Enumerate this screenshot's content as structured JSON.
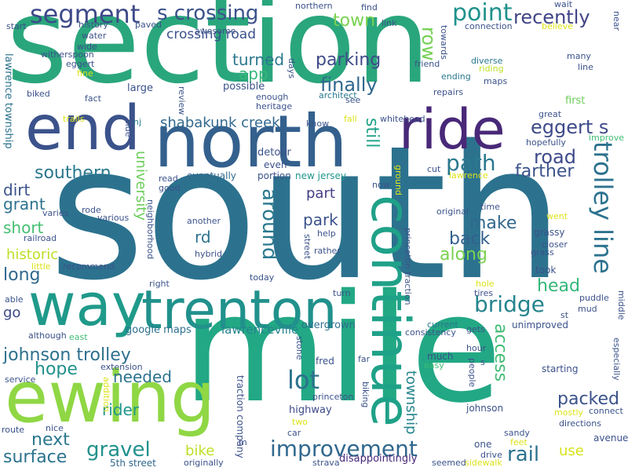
{
  "words": [
    {
      "id": "section",
      "text": "section",
      "color": "#2aa67c"
    },
    {
      "id": "south",
      "text": "south",
      "color": "#2c728e"
    },
    {
      "id": "mile",
      "text": "mile",
      "color": "#22a884"
    },
    {
      "id": "north",
      "text": "north",
      "color": "#34608d"
    },
    {
      "id": "end",
      "text": "end",
      "color": "#3b528b"
    },
    {
      "id": "ride",
      "text": "ride",
      "color": "#482878"
    },
    {
      "id": "way",
      "text": "way",
      "color": "#1f9a8a"
    },
    {
      "id": "trenton",
      "text": "trenton",
      "color": "#21918c"
    },
    {
      "id": "ewing",
      "text": "ewing",
      "color": "#8fd744"
    },
    {
      "id": "continue",
      "text": "continue",
      "color": "#1fa188"
    },
    {
      "id": "segment",
      "text": "segment",
      "color": "#3e4a89"
    },
    {
      "id": "s-crossing",
      "text": "s crossing",
      "color": "#3b528b"
    },
    {
      "id": "point",
      "text": "point",
      "color": "#21918c"
    },
    {
      "id": "recently",
      "text": "recently",
      "color": "#414487"
    },
    {
      "id": "town",
      "text": "town",
      "color": "#7ad151"
    },
    {
      "id": "crossing-road",
      "text": "crossing road",
      "color": "#3b528b"
    },
    {
      "id": "turned",
      "text": "turned",
      "color": "#2a788e"
    },
    {
      "id": "parking",
      "text": "parking",
      "color": "#3e4a89"
    },
    {
      "id": "app",
      "text": "app",
      "color": "#35b779"
    },
    {
      "id": "finally",
      "text": "finally",
      "color": "#31688e"
    },
    {
      "id": "row",
      "text": "row",
      "color": "#75d054"
    },
    {
      "id": "shabakunk-creek",
      "text": "shabakunk creek",
      "color": "#31688e"
    },
    {
      "id": "eggert-s",
      "text": "eggert s",
      "color": "#3e4a89"
    },
    {
      "id": "path",
      "text": "path",
      "color": "#2a788e"
    },
    {
      "id": "road",
      "text": "road",
      "color": "#3e4a89"
    },
    {
      "id": "trolley-line",
      "text": "trolley line",
      "color": "#2c728e"
    },
    {
      "id": "southern",
      "text": "southern",
      "color": "#2a788e"
    },
    {
      "id": "dirt",
      "text": "dirt",
      "color": "#3b528b"
    },
    {
      "id": "grant",
      "text": "grant",
      "color": "#2c728e"
    },
    {
      "id": "short",
      "text": "short",
      "color": "#44bf70"
    },
    {
      "id": "university",
      "text": "university",
      "color": "#6ccd5a"
    },
    {
      "id": "around",
      "text": "around",
      "color": "#2a788e"
    },
    {
      "id": "part",
      "text": "part",
      "color": "#433e85"
    },
    {
      "id": "farther",
      "text": "farther",
      "color": "#3b528b"
    },
    {
      "id": "make",
      "text": "make",
      "color": "#31688e"
    },
    {
      "id": "rd",
      "text": "rd",
      "color": "#2d708e"
    },
    {
      "id": "park",
      "text": "park",
      "color": "#3b528b"
    },
    {
      "id": "back",
      "text": "back",
      "color": "#34608d"
    },
    {
      "id": "historic",
      "text": "historic",
      "color": "#bddf26"
    },
    {
      "id": "long",
      "text": "long",
      "color": "#31688e"
    },
    {
      "id": "along",
      "text": "along",
      "color": "#7ad151"
    },
    {
      "id": "bridge",
      "text": "bridge",
      "color": "#25858e"
    },
    {
      "id": "head",
      "text": "head",
      "color": "#35b779"
    },
    {
      "id": "access",
      "text": "access",
      "color": "#3fbc73"
    },
    {
      "id": "johnson-trolley",
      "text": "johnson trolley",
      "color": "#2d708e"
    },
    {
      "id": "lot",
      "text": "lot",
      "color": "#2c728e"
    },
    {
      "id": "township",
      "text": "township",
      "color": "#25858e"
    },
    {
      "id": "hope",
      "text": "hope",
      "color": "#21918c"
    },
    {
      "id": "needed",
      "text": "needed",
      "color": "#2c728e"
    },
    {
      "id": "packed",
      "text": "packed",
      "color": "#3b528b"
    },
    {
      "id": "rider",
      "text": "rider",
      "color": "#1f968b"
    },
    {
      "id": "next",
      "text": "next",
      "color": "#2a788e"
    },
    {
      "id": "gravel",
      "text": "gravel",
      "color": "#21918c"
    },
    {
      "id": "bike",
      "text": "bike",
      "color": "#bddf26"
    },
    {
      "id": "improvement",
      "text": "improvement",
      "color": "#31688e"
    },
    {
      "id": "rail",
      "text": "rail",
      "color": "#2c728e"
    },
    {
      "id": "use",
      "text": "use",
      "color": "#d8e219"
    },
    {
      "id": "surface",
      "text": "surface",
      "color": "#2c728e"
    },
    {
      "id": "go",
      "text": "go",
      "color": "#3e4a89"
    },
    {
      "id": "lawrenceville",
      "text": "lawrenceville",
      "color": "#25838e"
    },
    {
      "id": "still",
      "text": "still",
      "color": "#1fa187"
    },
    {
      "id": "highway",
      "text": "highway",
      "color": "#3e4a89"
    },
    {
      "id": "johnson",
      "text": "johnson",
      "color": "#3b528b"
    },
    {
      "id": "lawrence-township",
      "text": "lawrence township",
      "color": "#2c728e"
    },
    {
      "id": "google-maps",
      "text": "google maps",
      "color": "#2d708e"
    },
    {
      "id": "overgrown",
      "text": "overgrown",
      "color": "#2d708e"
    },
    {
      "id": "traction-company",
      "text": "traction company",
      "color": "#3b528b"
    },
    {
      "id": "5th-street",
      "text": "5th street",
      "color": "#31688e"
    },
    {
      "id": "disappointingly",
      "text": "disappointingly",
      "color": "#482878"
    },
    {
      "id": "eventually",
      "text": "eventually",
      "color": "#31688e"
    },
    {
      "id": "portion",
      "text": "portion",
      "color": "#3b528b"
    },
    {
      "id": "new-jersey",
      "text": "new jersey",
      "color": "#1f968b"
    },
    {
      "id": "detour",
      "text": "detour",
      "color": "#3b528b"
    },
    {
      "id": "even",
      "text": "even",
      "color": "#3b528b"
    },
    {
      "id": "possible",
      "text": "possible",
      "color": "#3b528b"
    },
    {
      "id": "large",
      "text": "large",
      "color": "#3b528b"
    },
    {
      "id": "architect",
      "text": "architect",
      "color": "#2a788e"
    },
    {
      "id": "repairs",
      "text": "repairs",
      "color": "#3b528b"
    },
    {
      "id": "see",
      "text": "see",
      "color": "#3b528b"
    },
    {
      "id": "know",
      "text": "know",
      "color": "#3b528b"
    },
    {
      "id": "whitehead",
      "text": "whitehead",
      "color": "#3b528b"
    },
    {
      "id": "fall",
      "text": "fall",
      "color": "#dce319"
    },
    {
      "id": "great",
      "text": "great",
      "color": "#3b528b"
    },
    {
      "id": "hopefully",
      "text": "hopefully",
      "color": "#3b528b"
    },
    {
      "id": "improve",
      "text": "improve",
      "color": "#3fbc73"
    },
    {
      "id": "first",
      "text": "first",
      "color": "#6ccd5a"
    },
    {
      "id": "line",
      "text": "line",
      "color": "#3b528b"
    },
    {
      "id": "many",
      "text": "many",
      "color": "#3b528b"
    },
    {
      "id": "wait",
      "text": "wait",
      "color": "#3b528b"
    },
    {
      "id": "near",
      "text": "near",
      "color": "#3b528b"
    },
    {
      "id": "believe",
      "text": "believe",
      "color": "#dce319"
    },
    {
      "id": "connection",
      "text": "connection",
      "color": "#3b528b"
    },
    {
      "id": "towards",
      "text": "towards",
      "color": "#3b528b"
    },
    {
      "id": "link",
      "text": "link",
      "color": "#3b528b"
    },
    {
      "id": "find",
      "text": "find",
      "color": "#3b528b"
    },
    {
      "id": "northern",
      "text": "northern",
      "color": "#3b528b"
    },
    {
      "id": "friend",
      "text": "friend",
      "color": "#3b528b"
    },
    {
      "id": "ending",
      "text": "ending",
      "color": "#2a788e"
    },
    {
      "id": "diverse",
      "text": "diverse",
      "color": "#2a788e"
    },
    {
      "id": "riding",
      "text": "riding",
      "color": "#bddf26"
    },
    {
      "id": "maps",
      "text": "maps",
      "color": "#3b528b"
    },
    {
      "id": "start",
      "text": "start",
      "color": "#3b528b"
    },
    {
      "id": "history",
      "text": "history",
      "color": "#3b528b"
    },
    {
      "id": "water",
      "text": "water",
      "color": "#3b528b"
    },
    {
      "id": "paved",
      "text": "paved",
      "color": "#3b528b"
    },
    {
      "id": "awesome",
      "text": "awesome",
      "color": "#3b528b"
    },
    {
      "id": "wide",
      "text": "wide",
      "color": "#3b528b"
    },
    {
      "id": "witherspoon",
      "text": "witherspoon",
      "color": "#3b528b"
    },
    {
      "id": "eggert",
      "text": "eggert",
      "color": "#3b528b"
    },
    {
      "id": "fine",
      "text": "fine",
      "color": "#dce319"
    },
    {
      "id": "biked",
      "text": "biked",
      "color": "#3b528b"
    },
    {
      "id": "fact",
      "text": "fact",
      "color": "#3b528b"
    },
    {
      "id": "trails",
      "text": "trails",
      "color": "#dce319"
    },
    {
      "id": "review",
      "text": "review",
      "color": "#3b528b"
    },
    {
      "id": "days",
      "text": "days",
      "color": "#3b528b"
    },
    {
      "id": "enough",
      "text": "enough",
      "color": "#3b528b"
    },
    {
      "id": "heritage",
      "text": "heritage",
      "color": "#3b528b"
    },
    {
      "id": "nj",
      "text": "nj",
      "color": "#2a788e"
    },
    {
      "id": "side",
      "text": "side",
      "color": "#3b528b"
    },
    {
      "id": "read",
      "text": "read",
      "color": "#3b528b"
    },
    {
      "id": "good",
      "text": "good",
      "color": "#3b528b"
    },
    {
      "id": "ground",
      "text": "ground",
      "color": "#dce319"
    },
    {
      "id": "cut",
      "text": "cut",
      "color": "#3b528b"
    },
    {
      "id": "lawrence",
      "text": "lawrence",
      "color": "#dce319"
    },
    {
      "id": "now",
      "text": "now",
      "color": "#3b528b"
    },
    {
      "id": "varies",
      "text": "varies",
      "color": "#3b528b"
    },
    {
      "id": "rode",
      "text": "rode",
      "color": "#3b528b"
    },
    {
      "id": "various",
      "text": "various",
      "color": "#3b528b"
    },
    {
      "id": "neighborhood",
      "text": "neighborhood",
      "color": "#3b528b"
    },
    {
      "id": "another",
      "text": "another",
      "color": "#3b528b"
    },
    {
      "id": "hybrid",
      "text": "hybrid",
      "color": "#3b528b"
    },
    {
      "id": "railroad",
      "text": "railroad",
      "color": "#3b528b"
    },
    {
      "id": "little",
      "text": "little",
      "color": "#dce319"
    },
    {
      "id": "recommend",
      "text": "recommend",
      "color": "#3b528b"
    },
    {
      "id": "right",
      "text": "right",
      "color": "#3b528b"
    },
    {
      "id": "today",
      "text": "today",
      "color": "#3b528b"
    },
    {
      "id": "street",
      "text": "street",
      "color": "#3b528b"
    },
    {
      "id": "help",
      "text": "help",
      "color": "#3b528b"
    },
    {
      "id": "rather",
      "text": "rather",
      "color": "#3b528b"
    },
    {
      "id": "princeton-traction",
      "text": "princeton traction",
      "color": "#3b528b"
    },
    {
      "id": "original",
      "text": "original",
      "color": "#3b528b"
    },
    {
      "id": "time",
      "text": "time",
      "color": "#3b528b"
    },
    {
      "id": "went",
      "text": "went",
      "color": "#dce319"
    },
    {
      "id": "grassy",
      "text": "grassy",
      "color": "#3b528b"
    },
    {
      "id": "closer",
      "text": "closer",
      "color": "#3b528b"
    },
    {
      "id": "grass",
      "text": "grass",
      "color": "#3b528b"
    },
    {
      "id": "took",
      "text": "took",
      "color": "#3b528b"
    },
    {
      "id": "hole",
      "text": "hole",
      "color": "#dce319"
    },
    {
      "id": "puddle",
      "text": "puddle",
      "color": "#3b528b"
    },
    {
      "id": "middle",
      "text": "middle",
      "color": "#3b528b"
    },
    {
      "id": "able",
      "text": "able",
      "color": "#3b528b"
    },
    {
      "id": "turn",
      "text": "turn",
      "color": "#3b528b"
    },
    {
      "id": "tires",
      "text": "tires",
      "color": "#3b528b"
    },
    {
      "id": "st",
      "text": "st",
      "color": "#3b528b"
    },
    {
      "id": "mud",
      "text": "mud",
      "color": "#3b528b"
    },
    {
      "id": "although",
      "text": "although",
      "color": "#3b528b"
    },
    {
      "id": "east",
      "text": "east",
      "color": "#3fbc73"
    },
    {
      "id": "stone",
      "text": "stone",
      "color": "#3b528b"
    },
    {
      "id": "current",
      "text": "current",
      "color": "#2a788e"
    },
    {
      "id": "consistency",
      "text": "consistency",
      "color": "#3b528b"
    },
    {
      "id": "gets",
      "text": "gets",
      "color": "#3b528b"
    },
    {
      "id": "unimproved",
      "text": "unimproved",
      "color": "#3b528b"
    },
    {
      "id": "hour",
      "text": "hour",
      "color": "#3b528b"
    },
    {
      "id": "especially",
      "text": "especially",
      "color": "#3b528b"
    },
    {
      "id": "extension",
      "text": "extension",
      "color": "#3b528b"
    },
    {
      "id": "fred",
      "text": "fred",
      "color": "#3b528b"
    },
    {
      "id": "far",
      "text": "far",
      "color": "#3b528b"
    },
    {
      "id": "much",
      "text": "much",
      "color": "#3b528b"
    },
    {
      "id": "easy",
      "text": "easy",
      "color": "#3fbc73"
    },
    {
      "id": "people",
      "text": "people",
      "color": "#3b528b"
    },
    {
      "id": "s",
      "text": "s",
      "color": "#3b528b"
    },
    {
      "id": "starting",
      "text": "starting",
      "color": "#3b528b"
    },
    {
      "id": "service",
      "text": "service",
      "color": "#3b528b"
    },
    {
      "id": "addition",
      "text": "addition",
      "color": "#dce319"
    },
    {
      "id": "princeton",
      "text": "princeton",
      "color": "#3b528b"
    },
    {
      "id": "biking",
      "text": "biking",
      "color": "#3b528b"
    },
    {
      "id": "mostly",
      "text": "mostly",
      "color": "#dce319"
    },
    {
      "id": "connect",
      "text": "connect",
      "color": "#3b528b"
    },
    {
      "id": "route",
      "text": "route",
      "color": "#3b528b"
    },
    {
      "id": "nice",
      "text": "nice",
      "color": "#3b528b"
    },
    {
      "id": "two",
      "text": "two",
      "color": "#dce319"
    },
    {
      "id": "car",
      "text": "car",
      "color": "#3b528b"
    },
    {
      "id": "directions",
      "text": "directions",
      "color": "#3b528b"
    },
    {
      "id": "sandy",
      "text": "sandy",
      "color": "#3b528b"
    },
    {
      "id": "avenue",
      "text": "avenue",
      "color": "#3b528b"
    },
    {
      "id": "feet",
      "text": "feet",
      "color": "#dce319"
    },
    {
      "id": "one",
      "text": "one",
      "color": "#3b528b"
    },
    {
      "id": "drive",
      "text": "drive",
      "color": "#3b528b"
    },
    {
      "id": "seemed",
      "text": "seemed",
      "color": "#3b528b"
    },
    {
      "id": "sidewalk",
      "text": "sidewalk",
      "color": "#dce319"
    },
    {
      "id": "strava",
      "text": "strava",
      "color": "#3b528b"
    },
    {
      "id": "originally",
      "text": "originally",
      "color": "#3b528b"
    },
    {
      "id": "m",
      "text": "m",
      "color": "#3b528b"
    }
  ]
}
